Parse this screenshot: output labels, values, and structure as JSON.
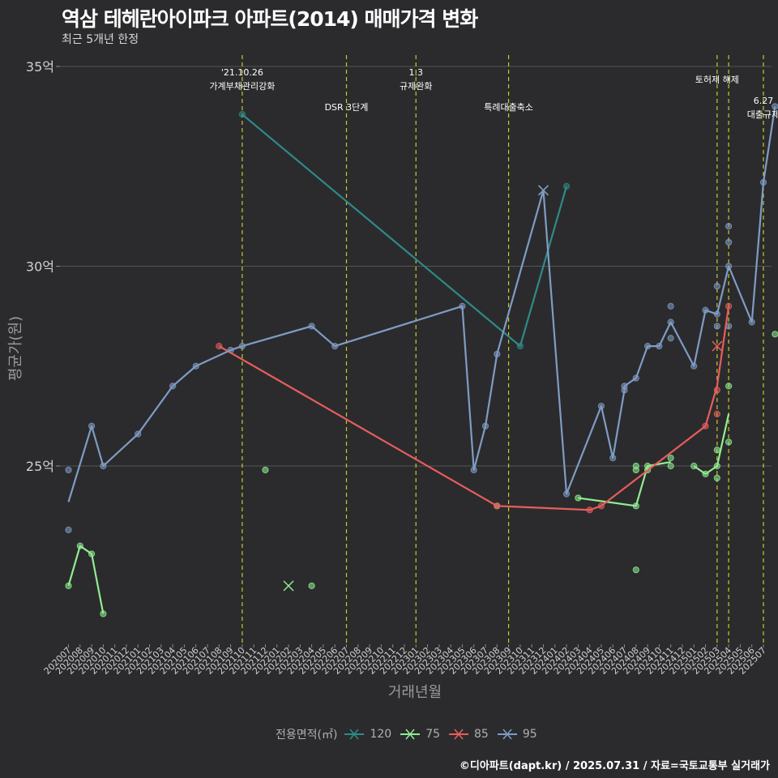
{
  "title": "역삼 테헤란아이파크 아파트(2014) 매매가격 변화",
  "subtitle": "최근 5개년 한정",
  "credit": "©디아파트(dapt.kr) / 2025.07.31 / 자료=국토교통부 실거래가",
  "colors": {
    "bg": "#2b2b2d",
    "grid": "#555555",
    "vline": "#c9c92a",
    "text": "#d0d0d0",
    "s120": "#2e8b87",
    "s75": "#90ee90",
    "s85": "#e85d5d",
    "s95": "#7f9cc4"
  },
  "chart_data": {
    "type": "line",
    "title": "역삼 테헤란아이파크 아파트(2014) 매매가격 변화",
    "xlabel": "거래년월",
    "ylabel": "평균가(원)",
    "ylim": [
      20.8,
      35.5
    ],
    "yticks": [
      25,
      30,
      35
    ],
    "ytick_labels": [
      "25억",
      "30억",
      "35억"
    ],
    "categories": [
      "202007",
      "202008",
      "202009",
      "202010",
      "202011",
      "202012",
      "202101",
      "202102",
      "202103",
      "202104",
      "202105",
      "202106",
      "202107",
      "202108",
      "202109",
      "202110",
      "202111",
      "202112",
      "202201",
      "202202",
      "202203",
      "202204",
      "202205",
      "202206",
      "202207",
      "202208",
      "202209",
      "202210",
      "202211",
      "202212",
      "202301",
      "202302",
      "202303",
      "202304",
      "202305",
      "202306",
      "202307",
      "202308",
      "202309",
      "202310",
      "202311",
      "202312",
      "202401",
      "202402",
      "202403",
      "202404",
      "202405",
      "202406",
      "202407",
      "202408",
      "202409",
      "202410",
      "202411",
      "202412",
      "202501",
      "202502",
      "202503",
      "202504",
      "202505",
      "202506",
      "202507"
    ],
    "legend_title": "전용면적(㎡)",
    "series": [
      {
        "name": "120",
        "color": "#2e8b87",
        "line": [
          [
            15,
            33.8
          ],
          [
            39,
            28.0
          ],
          [
            43,
            32.0
          ]
        ],
        "points": [
          [
            15,
            33.8
          ],
          [
            39,
            28.0
          ],
          [
            43,
            32.0
          ]
        ],
        "crosses": [
          [
            41,
            31.9
          ]
        ]
      },
      {
        "name": "75",
        "color": "#90ee90",
        "line": [
          [
            0,
            22.0
          ],
          [
            1,
            23.0
          ],
          [
            2,
            22.8
          ],
          [
            3,
            21.3
          ],
          null,
          [
            44,
            24.2
          ],
          [
            49,
            24.0
          ],
          [
            50,
            25.0
          ],
          [
            52,
            25.1
          ],
          null,
          [
            54,
            25.0
          ],
          [
            55,
            24.8
          ],
          [
            56,
            25.0
          ],
          [
            57,
            26.3
          ]
        ],
        "points": [
          [
            0,
            22.0
          ],
          [
            1,
            23.0
          ],
          [
            2,
            22.8
          ],
          [
            3,
            21.3
          ],
          [
            17,
            24.9
          ],
          [
            21,
            22.0
          ],
          [
            37,
            24.0
          ],
          [
            44,
            24.2
          ],
          [
            49,
            24.0
          ],
          [
            49,
            22.4
          ],
          [
            49,
            24.9
          ],
          [
            49,
            25.0
          ],
          [
            50,
            25.0
          ],
          [
            50,
            24.9
          ],
          [
            52,
            25.2
          ],
          [
            52,
            25.0
          ],
          [
            54,
            25.0
          ],
          [
            55,
            24.8
          ],
          [
            56,
            25.0
          ],
          [
            56,
            24.7
          ],
          [
            56,
            25.4
          ],
          [
            57,
            27.0
          ],
          [
            57,
            25.6
          ],
          [
            61,
            28.3
          ]
        ],
        "crosses": [
          [
            19,
            22.0
          ]
        ]
      },
      {
        "name": "85",
        "color": "#e85d5d",
        "line": [
          [
            13,
            28.0
          ],
          [
            37,
            24.0
          ],
          [
            45,
            23.9
          ],
          [
            46,
            24.0
          ],
          [
            55,
            26.0
          ],
          [
            56,
            27.0
          ],
          [
            57,
            29.0
          ]
        ],
        "points": [
          [
            13,
            28.0
          ],
          [
            37,
            24.0
          ],
          [
            45,
            23.9
          ],
          [
            46,
            24.0
          ],
          [
            55,
            26.0
          ],
          [
            56,
            26.9
          ],
          [
            56,
            26.3
          ],
          [
            57,
            29.0
          ]
        ],
        "crosses": [
          [
            56,
            28.0
          ]
        ]
      },
      {
        "name": "95",
        "color": "#7f9cc4",
        "line": [
          [
            0,
            24.1
          ],
          [
            2,
            26.0
          ],
          [
            3,
            25.0
          ],
          [
            6,
            25.8
          ],
          [
            9,
            27.0
          ],
          [
            11,
            27.5
          ],
          [
            14,
            27.9
          ],
          [
            15,
            28.0
          ],
          [
            21,
            28.5
          ],
          [
            23,
            28.0
          ],
          [
            34,
            29.0
          ],
          [
            35,
            24.9
          ],
          [
            36,
            26.0
          ],
          [
            37,
            27.8
          ],
          [
            41,
            31.9
          ],
          [
            43,
            24.3
          ],
          [
            46,
            26.5
          ],
          [
            47,
            25.2
          ],
          [
            48,
            26.9
          ],
          [
            48,
            27.0
          ],
          [
            49,
            27.2
          ],
          [
            50,
            28.0
          ],
          [
            51,
            28.0
          ],
          [
            52,
            28.6
          ],
          [
            54,
            27.5
          ],
          [
            55,
            28.9
          ],
          [
            56,
            28.8
          ],
          [
            57,
            30.0
          ],
          [
            59,
            28.6
          ],
          [
            60,
            32.1
          ],
          [
            61,
            34.0
          ]
        ],
        "points": [
          [
            0,
            24.9
          ],
          [
            0,
            23.4
          ],
          [
            2,
            26.0
          ],
          [
            3,
            25.0
          ],
          [
            6,
            25.8
          ],
          [
            9,
            27.0
          ],
          [
            11,
            27.5
          ],
          [
            14,
            27.9
          ],
          [
            15,
            28.0
          ],
          [
            21,
            28.5
          ],
          [
            23,
            28.0
          ],
          [
            34,
            29.0
          ],
          [
            35,
            24.9
          ],
          [
            36,
            26.0
          ],
          [
            37,
            27.8
          ],
          [
            43,
            24.3
          ],
          [
            46,
            26.5
          ],
          [
            47,
            25.2
          ],
          [
            48,
            26.9
          ],
          [
            48,
            27.0
          ],
          [
            49,
            27.2
          ],
          [
            50,
            28.0
          ],
          [
            51,
            28.0
          ],
          [
            52,
            28.6
          ],
          [
            52,
            29.0
          ],
          [
            52,
            28.2
          ],
          [
            54,
            27.5
          ],
          [
            55,
            28.9
          ],
          [
            56,
            29.5
          ],
          [
            56,
            28.8
          ],
          [
            56,
            28.5
          ],
          [
            57,
            30.0
          ],
          [
            57,
            31.0
          ],
          [
            57,
            30.6
          ],
          [
            57,
            28.5
          ],
          [
            59,
            28.6
          ],
          [
            60,
            32.1
          ],
          [
            61,
            34.0
          ]
        ],
        "crosses": [
          [
            41,
            31.9
          ]
        ]
      }
    ],
    "events": [
      {
        "x": 15,
        "label1": "'21.10.26",
        "label2": "가계부채관리강화"
      },
      {
        "x": 24,
        "label1": "",
        "label2": "DSR 3단계"
      },
      {
        "x": 30,
        "label1": "1.3",
        "label2": "규제완화"
      },
      {
        "x": 38,
        "label1": "",
        "label2": "특례대출축소"
      },
      {
        "x": 56,
        "label1": "",
        "label2": "토허제 해제"
      },
      {
        "x": 57,
        "label1": "",
        "label2": ""
      },
      {
        "x": 60,
        "label1": "6.27",
        "label2": "대출규제"
      }
    ]
  }
}
